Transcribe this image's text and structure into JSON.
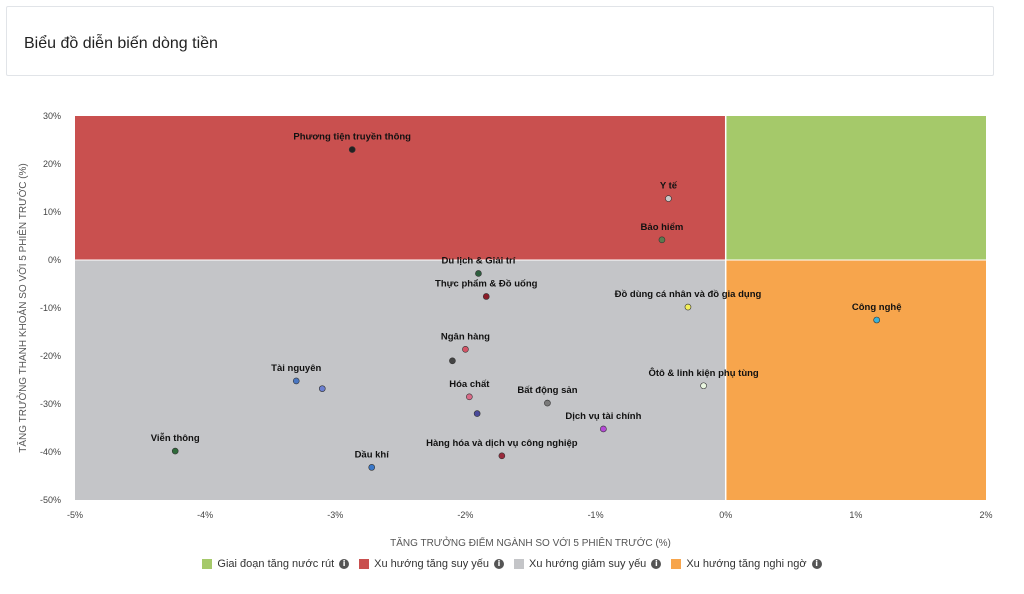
{
  "header": {
    "title": "Biểu đồ diễn biến dòng tiền"
  },
  "chart_data": {
    "type": "scatter",
    "xlabel": "TĂNG TRƯỞNG ĐIỂM NGÀNH SO VỚI 5 PHIÊN TRƯỚC (%)",
    "ylabel": "TĂNG TRƯỞNG THANH KHOẢN SO VỚI 5 PHIÊN TRƯỚC (%)",
    "xlim": [
      -5,
      2
    ],
    "ylim": [
      -50,
      30
    ],
    "x_ticks": [
      -5,
      -4,
      -3,
      -2,
      -1,
      0,
      1,
      2
    ],
    "y_ticks": [
      30,
      20,
      10,
      0,
      -10,
      -20,
      -30,
      -40,
      -50
    ],
    "x_tick_labels": [
      "-5%",
      "-4%",
      "-3%",
      "-2%",
      "-1%",
      "0%",
      "1%",
      "2%"
    ],
    "y_tick_labels": [
      "30%",
      "20%",
      "10%",
      "0%",
      "-10%",
      "-20%",
      "-30%",
      "-40%",
      "-50%"
    ],
    "quadrants": [
      {
        "name": "Giai đoạn tăng nước rút",
        "color": "#a5c96a",
        "x": [
          0,
          2
        ],
        "y": [
          0,
          30
        ]
      },
      {
        "name": "Xu hướng tăng suy yếu",
        "color": "#c9504f",
        "x": [
          -5,
          0
        ],
        "y": [
          0,
          30
        ]
      },
      {
        "name": "Xu hướng giảm suy yếu",
        "color": "#c4c5c8",
        "x": [
          -5,
          0
        ],
        "y": [
          -50,
          0
        ]
      },
      {
        "name": "Xu hướng tăng nghi ngờ",
        "color": "#f7a54c",
        "x": [
          0,
          2
        ],
        "y": [
          -50,
          0
        ]
      }
    ],
    "points": [
      {
        "label": "Phương tiện truyền thông",
        "x": -2.87,
        "y": 23.0,
        "color": "#222222"
      },
      {
        "label": "Y tế",
        "x": -0.44,
        "y": 12.8,
        "color": "#c9c9c9"
      },
      {
        "label": "Bảo hiểm",
        "x": -0.49,
        "y": 4.2,
        "color": "#5c7a4e"
      },
      {
        "label": "Du lịch & Giải trí",
        "x": -1.9,
        "y": -2.8,
        "color": "#2e5e3e"
      },
      {
        "label": "Thực phẩm & Đồ uống",
        "x": -1.84,
        "y": -7.6,
        "color": "#8b1c28"
      },
      {
        "label": "Đồ dùng cá nhân và đồ gia dụng",
        "x": -0.29,
        "y": -9.8,
        "color": "#f3ef5a"
      },
      {
        "label": "Công nghệ",
        "x": 1.16,
        "y": -12.5,
        "color": "#3bb2d8"
      },
      {
        "label": "Ngân hàng",
        "x": -2.0,
        "y": -18.6,
        "color": "#d35466"
      },
      {
        "label": "",
        "x": -2.1,
        "y": -21.0,
        "color": "#444444"
      },
      {
        "label": "Tài nguyên",
        "x": -3.3,
        "y": -25.2,
        "color": "#4a77c2"
      },
      {
        "label": "",
        "x": -3.1,
        "y": -26.8,
        "color": "#6b7fd0"
      },
      {
        "label": "Ôtô & linh kiện phụ tùng",
        "x": -0.17,
        "y": -26.2,
        "color": "#e8f5df"
      },
      {
        "label": "Bất động sản",
        "x": -1.37,
        "y": -29.8,
        "color": "#7a7a7a"
      },
      {
        "label": "Hóa chất",
        "x": -1.97,
        "y": -28.5,
        "color": "#d86b88"
      },
      {
        "label": "",
        "x": -1.91,
        "y": -32.0,
        "color": "#4a4a9a"
      },
      {
        "label": "Dịch vụ tài chính",
        "x": -0.94,
        "y": -35.2,
        "color": "#b44ad6"
      },
      {
        "label": "Viễn thông",
        "x": -4.23,
        "y": -39.8,
        "color": "#2f6a3a"
      },
      {
        "label": "Hàng hóa và dịch vụ công nghiệp",
        "x": -1.72,
        "y": -40.8,
        "color": "#9a2a3c"
      },
      {
        "label": "Dầu khí",
        "x": -2.72,
        "y": -43.2,
        "color": "#3a78c9"
      }
    ]
  },
  "legend": {
    "info_glyph": "i",
    "items": [
      {
        "label": "Giai đoạn tăng nước rút",
        "color": "#a5c96a"
      },
      {
        "label": "Xu hướng tăng suy yếu",
        "color": "#c9504f"
      },
      {
        "label": "Xu hướng giảm suy yếu",
        "color": "#c4c5c8"
      },
      {
        "label": "Xu hướng tăng nghi ngờ",
        "color": "#f7a54c"
      }
    ]
  }
}
